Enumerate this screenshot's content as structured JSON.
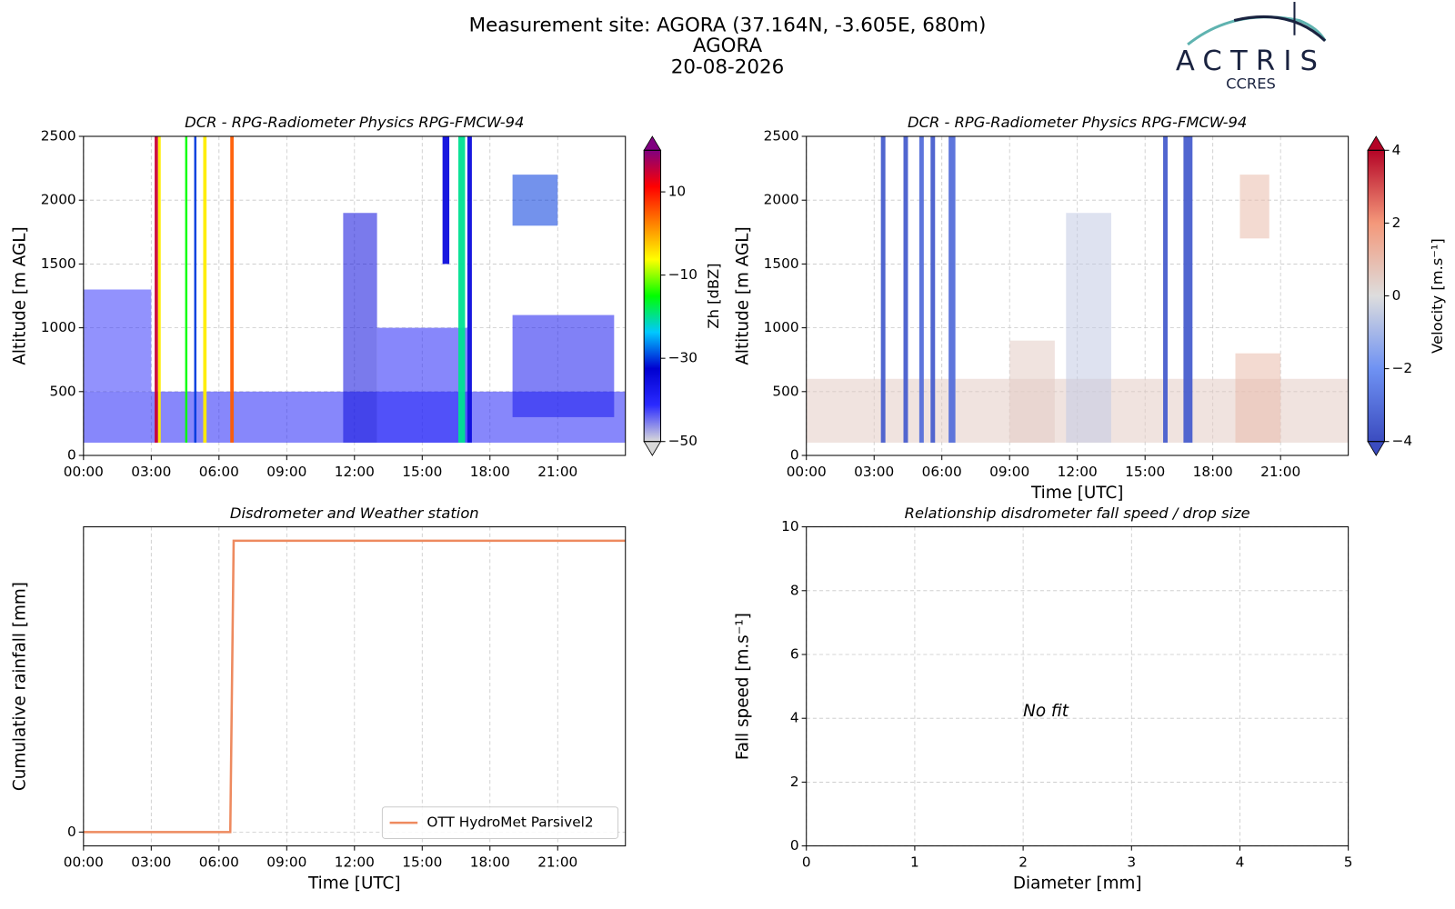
{
  "header": {
    "title": "Measurement site: AGORA (37.164N, -3.605E, 680m)",
    "site": "AGORA",
    "date": "20-08-2026"
  },
  "logo": {
    "name": "ACTRIS",
    "subtitle": "CCRES"
  },
  "chart_data": [
    {
      "type": "heatmap",
      "title": "DCR - RPG-Radiometer Physics RPG-FMCW-94",
      "ylabel": "Altitude [m AGL]",
      "xlim": [
        0,
        24
      ],
      "xticks": [
        {
          "value": 0,
          "label": "00:00"
        },
        {
          "value": 3,
          "label": "03:00"
        },
        {
          "value": 6,
          "label": "06:00"
        },
        {
          "value": 9,
          "label": "09:00"
        },
        {
          "value": 12,
          "label": "12:00"
        },
        {
          "value": 15,
          "label": "15:00"
        },
        {
          "value": 18,
          "label": "18:00"
        },
        {
          "value": 21,
          "label": "21:00"
        }
      ],
      "ylim": [
        0,
        2500
      ],
      "yticks": [
        0,
        500,
        1000,
        1500,
        2000,
        2500
      ],
      "grid": true,
      "colorbar_label": "Zh [dBZ]",
      "clim": [
        -50,
        20
      ],
      "cticks": [
        {
          "value": -50,
          "label": "−50"
        },
        {
          "value": -30,
          "label": "−30"
        },
        {
          "value": -10,
          "label": "−10"
        },
        10
      ],
      "colormap": [
        "#d9d9d9",
        "#2a2aff",
        "#0000d0",
        "#00c8ff",
        "#00ff00",
        "#ffff00",
        "#ff8000",
        "#ff0000",
        "#800080"
      ],
      "cells": {
        "x0": [
          0,
          0,
          11.5,
          13,
          19,
          3.15,
          3.3,
          4.5,
          4.9,
          5.3,
          6.5,
          15.9,
          16.6,
          17,
          19
        ],
        "x1": [
          24,
          3,
          13,
          17,
          23.5,
          3.3,
          3.42,
          4.6,
          5.0,
          5.45,
          6.65,
          16.2,
          16.9,
          17.2,
          21
        ],
        "y0": [
          100,
          500,
          100,
          100,
          300,
          100,
          100,
          100,
          100,
          100,
          100,
          1500,
          100,
          100,
          1800
        ],
        "y1": [
          500,
          1300,
          1900,
          1000,
          1100,
          2500,
          2500,
          2500,
          2500,
          2500,
          2500,
          2500,
          2500,
          2500,
          2200
        ],
        "values": [
          -40,
          -42,
          -35,
          -40,
          -38,
          15,
          -5,
          -15,
          -30,
          -5,
          5,
          -35,
          -20,
          -35,
          -30
        ]
      }
    },
    {
      "type": "heatmap",
      "title": "DCR - RPG-Radiometer Physics RPG-FMCW-94",
      "ylabel": "Altitude [m AGL]",
      "xlabel": "Time [UTC]",
      "xlim": [
        0,
        24
      ],
      "xticks": [
        {
          "value": 0,
          "label": "00:00"
        },
        {
          "value": 3,
          "label": "03:00"
        },
        {
          "value": 6,
          "label": "06:00"
        },
        {
          "value": 9,
          "label": "09:00"
        },
        {
          "value": 12,
          "label": "12:00"
        },
        {
          "value": 15,
          "label": "15:00"
        },
        {
          "value": 18,
          "label": "18:00"
        },
        {
          "value": 21,
          "label": "21:00"
        }
      ],
      "ylim": [
        0,
        2500
      ],
      "yticks": [
        0,
        500,
        1000,
        1500,
        2000,
        2500
      ],
      "grid": true,
      "colorbar_label": "Velocity [m.s⁻¹]",
      "clim": [
        -4,
        4
      ],
      "cticks": [
        {
          "value": -4,
          "label": "−4"
        },
        {
          "value": -2,
          "label": "−2"
        },
        0,
        2,
        4
      ],
      "colormap": [
        "#3b4cc0",
        "#6f92f3",
        "#dddddd",
        "#f4987a",
        "#b40426"
      ],
      "cells": {
        "x0": [
          0,
          11.5,
          3.3,
          4.3,
          5.0,
          5.5,
          6.3,
          15.8,
          16.7,
          19,
          19.2,
          9
        ],
        "x1": [
          24,
          13.5,
          3.5,
          4.5,
          5.2,
          5.7,
          6.6,
          16.0,
          17.1,
          21,
          20.5,
          11
        ],
        "y0": [
          100,
          100,
          100,
          100,
          100,
          100,
          100,
          100,
          100,
          100,
          1700,
          100
        ],
        "y1": [
          600,
          1900,
          2500,
          2500,
          2500,
          2500,
          2500,
          2500,
          2500,
          800,
          2200,
          900
        ],
        "values": [
          0.5,
          -0.5,
          -3.5,
          -3.5,
          -3,
          -3.5,
          -3,
          -3.5,
          -3.5,
          1,
          1,
          0.5
        ]
      }
    },
    {
      "type": "line",
      "title": "Disdrometer and Weather station",
      "ylabel": "Cumulative rainfall [mm]",
      "xlabel": "Time [UTC]",
      "xlim": [
        0,
        24
      ],
      "xticks": [
        {
          "value": 0,
          "label": "00:00"
        },
        {
          "value": 3,
          "label": "03:00"
        },
        {
          "value": 6,
          "label": "06:00"
        },
        {
          "value": 9,
          "label": "09:00"
        },
        {
          "value": 12,
          "label": "12:00"
        },
        {
          "value": 15,
          "label": "15:00"
        },
        {
          "value": 18,
          "label": "18:00"
        },
        {
          "value": 21,
          "label": "21:00"
        }
      ],
      "ylim": [
        -0.1,
        2.2
      ],
      "yticks": [
        0
      ],
      "grid": true,
      "legend": "lower right",
      "x": [
        0,
        6.5,
        6.65,
        24
      ],
      "series": [
        {
          "name": "OTT HydroMet Parsivel2",
          "color": "#ee8a5f",
          "values": [
            0,
            0,
            2.1,
            2.1
          ]
        }
      ]
    },
    {
      "type": "scatter",
      "title": "Relationship disdrometer fall speed / drop size",
      "ylabel": "Fall speed [m.s⁻¹]",
      "xlabel": "Diameter [mm]",
      "xlim": [
        0,
        5
      ],
      "xticks": [
        0,
        1,
        2,
        3,
        4,
        5
      ],
      "ylim": [
        0,
        10
      ],
      "yticks": [
        0,
        2,
        4,
        6,
        8,
        10
      ],
      "grid": true,
      "annotation": "No fit"
    }
  ]
}
